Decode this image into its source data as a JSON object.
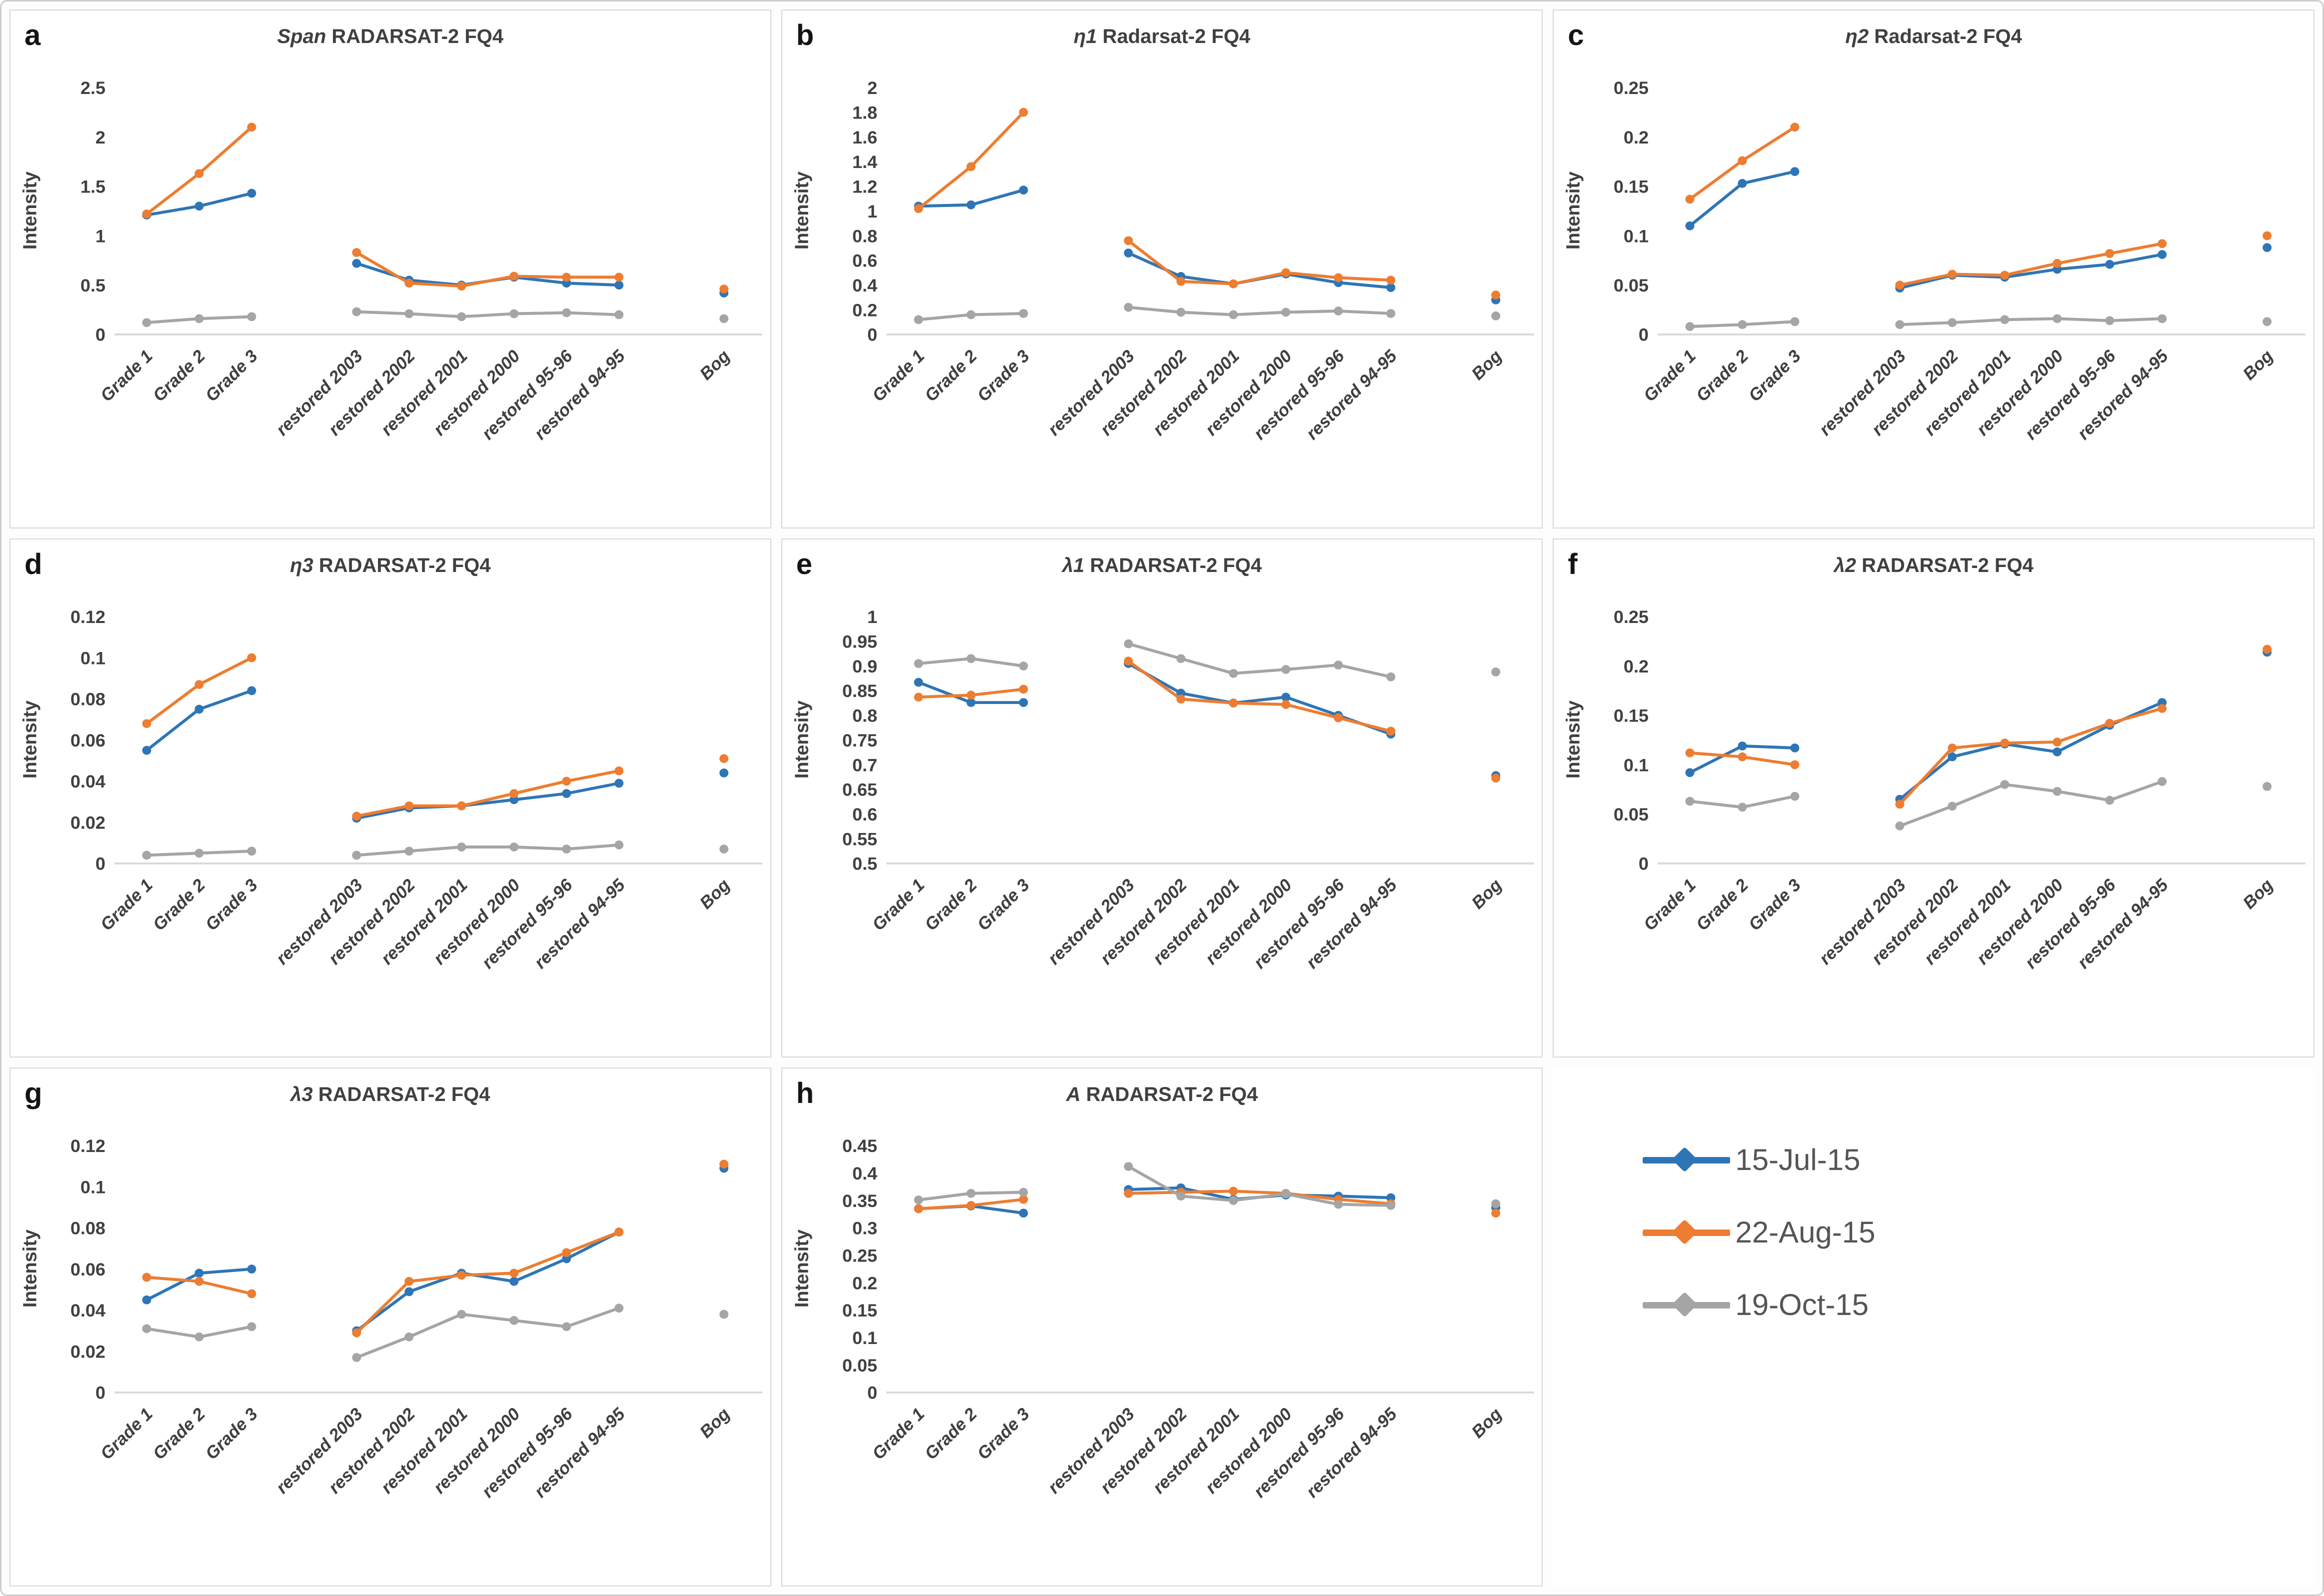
{
  "figure": {
    "ylabel": "Intensity",
    "colors": {
      "jul": "#2E75B6",
      "aug": "#ED7D31",
      "oct": "#A5A5A5",
      "axis_line": "#d9d9d9",
      "text": "#404040"
    }
  },
  "categories": [
    "Grade 1",
    "Grade 2",
    "Grade 3",
    "restored 2003",
    "restored 2002",
    "restored 2001",
    "restored 2000",
    "restored 95-96",
    "restored 94-95",
    "Bog"
  ],
  "slots": [
    0,
    1,
    2,
    4,
    5,
    6,
    7,
    8,
    9,
    11
  ],
  "segments": [
    [
      0,
      1,
      2
    ],
    [
      3,
      4,
      5,
      6,
      7,
      8
    ],
    [
      9
    ]
  ],
  "legend": {
    "items": [
      {
        "label": "15-Jul-15",
        "color": "#2E75B6"
      },
      {
        "label": "22-Aug-15",
        "color": "#ED7D31"
      },
      {
        "label": "19-Oct-15",
        "color": "#A5A5A5"
      }
    ]
  },
  "charts": [
    {
      "letter": "a",
      "title_prefix": "Span",
      "title_rest": " RADARSAT-2 FQ4",
      "ylabel": "Intensity",
      "type": "line",
      "ylim": [
        0,
        2.5
      ],
      "yticks": [
        "0",
        "0.5",
        "1",
        "1.5",
        "2",
        "2.5"
      ],
      "series": [
        {
          "name": "15-Jul-15",
          "color": "#2E75B6",
          "values": [
            1.21,
            1.3,
            1.43,
            0.72,
            0.55,
            0.5,
            0.58,
            0.52,
            0.5,
            0.42
          ]
        },
        {
          "name": "22-Aug-15",
          "color": "#ED7D31",
          "values": [
            1.22,
            1.63,
            2.1,
            0.83,
            0.52,
            0.49,
            0.59,
            0.58,
            0.58,
            0.46
          ]
        },
        {
          "name": "19-Oct-15",
          "color": "#A5A5A5",
          "values": [
            0.12,
            0.16,
            0.18,
            0.23,
            0.21,
            0.18,
            0.21,
            0.22,
            0.2,
            0.16
          ]
        }
      ]
    },
    {
      "letter": "b",
      "title_prefix": "η1",
      "title_rest": " Radarsat-2 FQ4",
      "ylabel": "Intensity",
      "type": "line",
      "ylim": [
        0,
        2
      ],
      "yticks": [
        "0",
        "0.2",
        "0.4",
        "0.6",
        "0.8",
        "1",
        "1.2",
        "1.4",
        "1.6",
        "1.8",
        "2"
      ],
      "series": [
        {
          "name": "15-Jul-15",
          "color": "#2E75B6",
          "values": [
            1.04,
            1.05,
            1.17,
            0.66,
            0.47,
            0.41,
            0.49,
            0.42,
            0.38,
            0.28
          ]
        },
        {
          "name": "22-Aug-15",
          "color": "#ED7D31",
          "values": [
            1.02,
            1.36,
            1.8,
            0.76,
            0.43,
            0.41,
            0.5,
            0.46,
            0.44,
            0.32
          ]
        },
        {
          "name": "19-Oct-15",
          "color": "#A5A5A5",
          "values": [
            0.12,
            0.16,
            0.17,
            0.22,
            0.18,
            0.16,
            0.18,
            0.19,
            0.17,
            0.15
          ]
        }
      ]
    },
    {
      "letter": "c",
      "title_prefix": "η2",
      "title_rest": " Radarsat-2 FQ4",
      "ylabel": "Intensity",
      "type": "line",
      "ylim": [
        0,
        0.25
      ],
      "yticks": [
        "0",
        "0.05",
        "0.1",
        "0.15",
        "0.2",
        "0.25"
      ],
      "series": [
        {
          "name": "15-Jul-15",
          "color": "#2E75B6",
          "values": [
            0.11,
            0.153,
            0.165,
            0.047,
            0.06,
            0.058,
            0.066,
            0.071,
            0.081,
            0.088
          ]
        },
        {
          "name": "22-Aug-15",
          "color": "#ED7D31",
          "values": [
            0.137,
            0.176,
            0.21,
            0.05,
            0.061,
            0.06,
            0.072,
            0.082,
            0.092,
            0.1
          ]
        },
        {
          "name": "19-Oct-15",
          "color": "#A5A5A5",
          "values": [
            0.008,
            0.01,
            0.013,
            0.01,
            0.012,
            0.015,
            0.016,
            0.014,
            0.016,
            0.013
          ]
        }
      ]
    },
    {
      "letter": "d",
      "title_prefix": "η3",
      "title_rest": " RADARSAT-2 FQ4",
      "ylabel": "Intensity",
      "type": "line",
      "ylim": [
        0,
        0.12
      ],
      "yticks": [
        "0",
        "0.02",
        "0.04",
        "0.06",
        "0.08",
        "0.1",
        "0.12"
      ],
      "series": [
        {
          "name": "15-Jul-15",
          "color": "#2E75B6",
          "values": [
            0.055,
            0.075,
            0.084,
            0.022,
            0.027,
            0.028,
            0.031,
            0.034,
            0.039,
            0.044
          ]
        },
        {
          "name": "22-Aug-15",
          "color": "#ED7D31",
          "values": [
            0.068,
            0.087,
            0.1,
            0.023,
            0.028,
            0.028,
            0.034,
            0.04,
            0.045,
            0.051
          ]
        },
        {
          "name": "19-Oct-15",
          "color": "#A5A5A5",
          "values": [
            0.004,
            0.005,
            0.006,
            0.004,
            0.006,
            0.008,
            0.008,
            0.007,
            0.009,
            0.007
          ]
        }
      ]
    },
    {
      "letter": "e",
      "title_prefix": "λ1",
      "title_rest": " RADARSAT-2 FQ4",
      "ylabel": "Intensity",
      "type": "line",
      "ylim": [
        0.5,
        1
      ],
      "yticks": [
        "0.5",
        "0.55",
        "0.6",
        "0.65",
        "0.7",
        "0.75",
        "0.8",
        "0.85",
        "0.9",
        "0.95",
        "1"
      ],
      "series": [
        {
          "name": "15-Jul-15",
          "color": "#2E75B6",
          "values": [
            0.867,
            0.826,
            0.826,
            0.905,
            0.845,
            0.825,
            0.837,
            0.8,
            0.762,
            0.678
          ]
        },
        {
          "name": "22-Aug-15",
          "color": "#ED7D31",
          "values": [
            0.837,
            0.841,
            0.853,
            0.91,
            0.833,
            0.825,
            0.822,
            0.795,
            0.768,
            0.673
          ]
        },
        {
          "name": "19-Oct-15",
          "color": "#A5A5A5",
          "values": [
            0.905,
            0.915,
            0.9,
            0.945,
            0.915,
            0.885,
            0.893,
            0.902,
            0.878,
            0.888
          ]
        }
      ]
    },
    {
      "letter": "f",
      "title_prefix": "λ2",
      "title_rest": " RADARSAT-2 FQ4",
      "ylabel": "Intensity",
      "type": "line",
      "ylim": [
        0,
        0.25
      ],
      "yticks": [
        "0",
        "0.05",
        "0.1",
        "0.15",
        "0.2",
        "0.25"
      ],
      "series": [
        {
          "name": "15-Jul-15",
          "color": "#2E75B6",
          "values": [
            0.092,
            0.119,
            0.117,
            0.065,
            0.108,
            0.121,
            0.113,
            0.14,
            0.163,
            0.214
          ]
        },
        {
          "name": "22-Aug-15",
          "color": "#ED7D31",
          "values": [
            0.112,
            0.108,
            0.1,
            0.06,
            0.117,
            0.122,
            0.123,
            0.142,
            0.157,
            0.217
          ]
        },
        {
          "name": "19-Oct-15",
          "color": "#A5A5A5",
          "values": [
            0.063,
            0.057,
            0.068,
            0.038,
            0.058,
            0.08,
            0.073,
            0.064,
            0.083,
            0.078
          ]
        }
      ]
    },
    {
      "letter": "g",
      "title_prefix": "λ3",
      "title_rest": " RADARSAT-2 FQ4",
      "ylabel": "Intensity",
      "type": "line",
      "ylim": [
        0,
        0.12
      ],
      "yticks": [
        "0",
        "0.02",
        "0.04",
        "0.06",
        "0.08",
        "0.1",
        "0.12"
      ],
      "series": [
        {
          "name": "15-Jul-15",
          "color": "#2E75B6",
          "values": [
            0.045,
            0.058,
            0.06,
            0.03,
            0.049,
            0.058,
            0.054,
            0.065,
            0.078,
            0.109
          ]
        },
        {
          "name": "22-Aug-15",
          "color": "#ED7D31",
          "values": [
            0.056,
            0.054,
            0.048,
            0.029,
            0.054,
            0.057,
            0.058,
            0.068,
            0.078,
            0.111
          ]
        },
        {
          "name": "19-Oct-15",
          "color": "#A5A5A5",
          "values": [
            0.031,
            0.027,
            0.032,
            0.017,
            0.027,
            0.038,
            0.035,
            0.032,
            0.041,
            0.038
          ]
        }
      ]
    },
    {
      "letter": "h",
      "title_prefix": "A",
      "title_rest": " RADARSAT-2 FQ4",
      "ylabel": "Intensity",
      "type": "line",
      "ylim": [
        0,
        0.45
      ],
      "yticks": [
        "0",
        "0.05",
        "0.1",
        "0.15",
        "0.2",
        "0.25",
        "0.3",
        "0.35",
        "0.4",
        "0.45"
      ],
      "series": [
        {
          "name": "15-Jul-15",
          "color": "#2E75B6",
          "values": [
            0.335,
            0.34,
            0.327,
            0.37,
            0.373,
            0.352,
            0.36,
            0.358,
            0.355,
            0.337
          ]
        },
        {
          "name": "22-Aug-15",
          "color": "#ED7D31",
          "values": [
            0.335,
            0.341,
            0.352,
            0.363,
            0.365,
            0.367,
            0.363,
            0.352,
            0.344,
            0.327
          ]
        },
        {
          "name": "19-Oct-15",
          "color": "#A5A5A5",
          "values": [
            0.351,
            0.363,
            0.365,
            0.412,
            0.358,
            0.35,
            0.362,
            0.343,
            0.341,
            0.344
          ]
        }
      ]
    }
  ],
  "chart_data": {
    "note": "see charts[] — same data",
    "type": "line"
  }
}
